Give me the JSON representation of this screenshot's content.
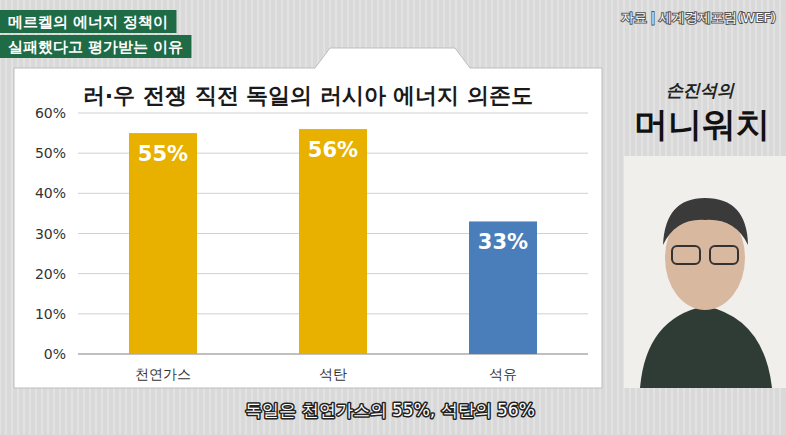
{
  "header": {
    "lines": [
      "메르켈의 에너지 정책이",
      "실패했다고 평가받는 이유"
    ]
  },
  "source": "자료 | 세계경제포럼(WEF)",
  "logo": {
    "small": "손진석의",
    "large": "머니워치"
  },
  "caption": "독일은 천연가스의 55%, 석탄의 56%",
  "chart_data": {
    "type": "bar",
    "title": "러·우 전쟁 직전 독일의 러시아 에너지 의존도",
    "categories": [
      "천연가스",
      "석탄",
      "석유"
    ],
    "values": [
      55,
      56,
      33
    ],
    "value_labels": [
      "55%",
      "56%",
      "33%"
    ],
    "colors": [
      "#e8b100",
      "#e8b100",
      "#4a7ebb"
    ],
    "ylim": [
      0,
      60
    ],
    "yticks": [
      {
        "value": 0,
        "label": "0%"
      },
      {
        "value": 10,
        "label": "10%"
      },
      {
        "value": 20,
        "label": "20%"
      },
      {
        "value": 30,
        "label": "30%"
      },
      {
        "value": 40,
        "label": "40%"
      },
      {
        "value": 50,
        "label": "50%"
      },
      {
        "value": 60,
        "label": "60%"
      }
    ],
    "grid": true,
    "data_labels": true
  }
}
